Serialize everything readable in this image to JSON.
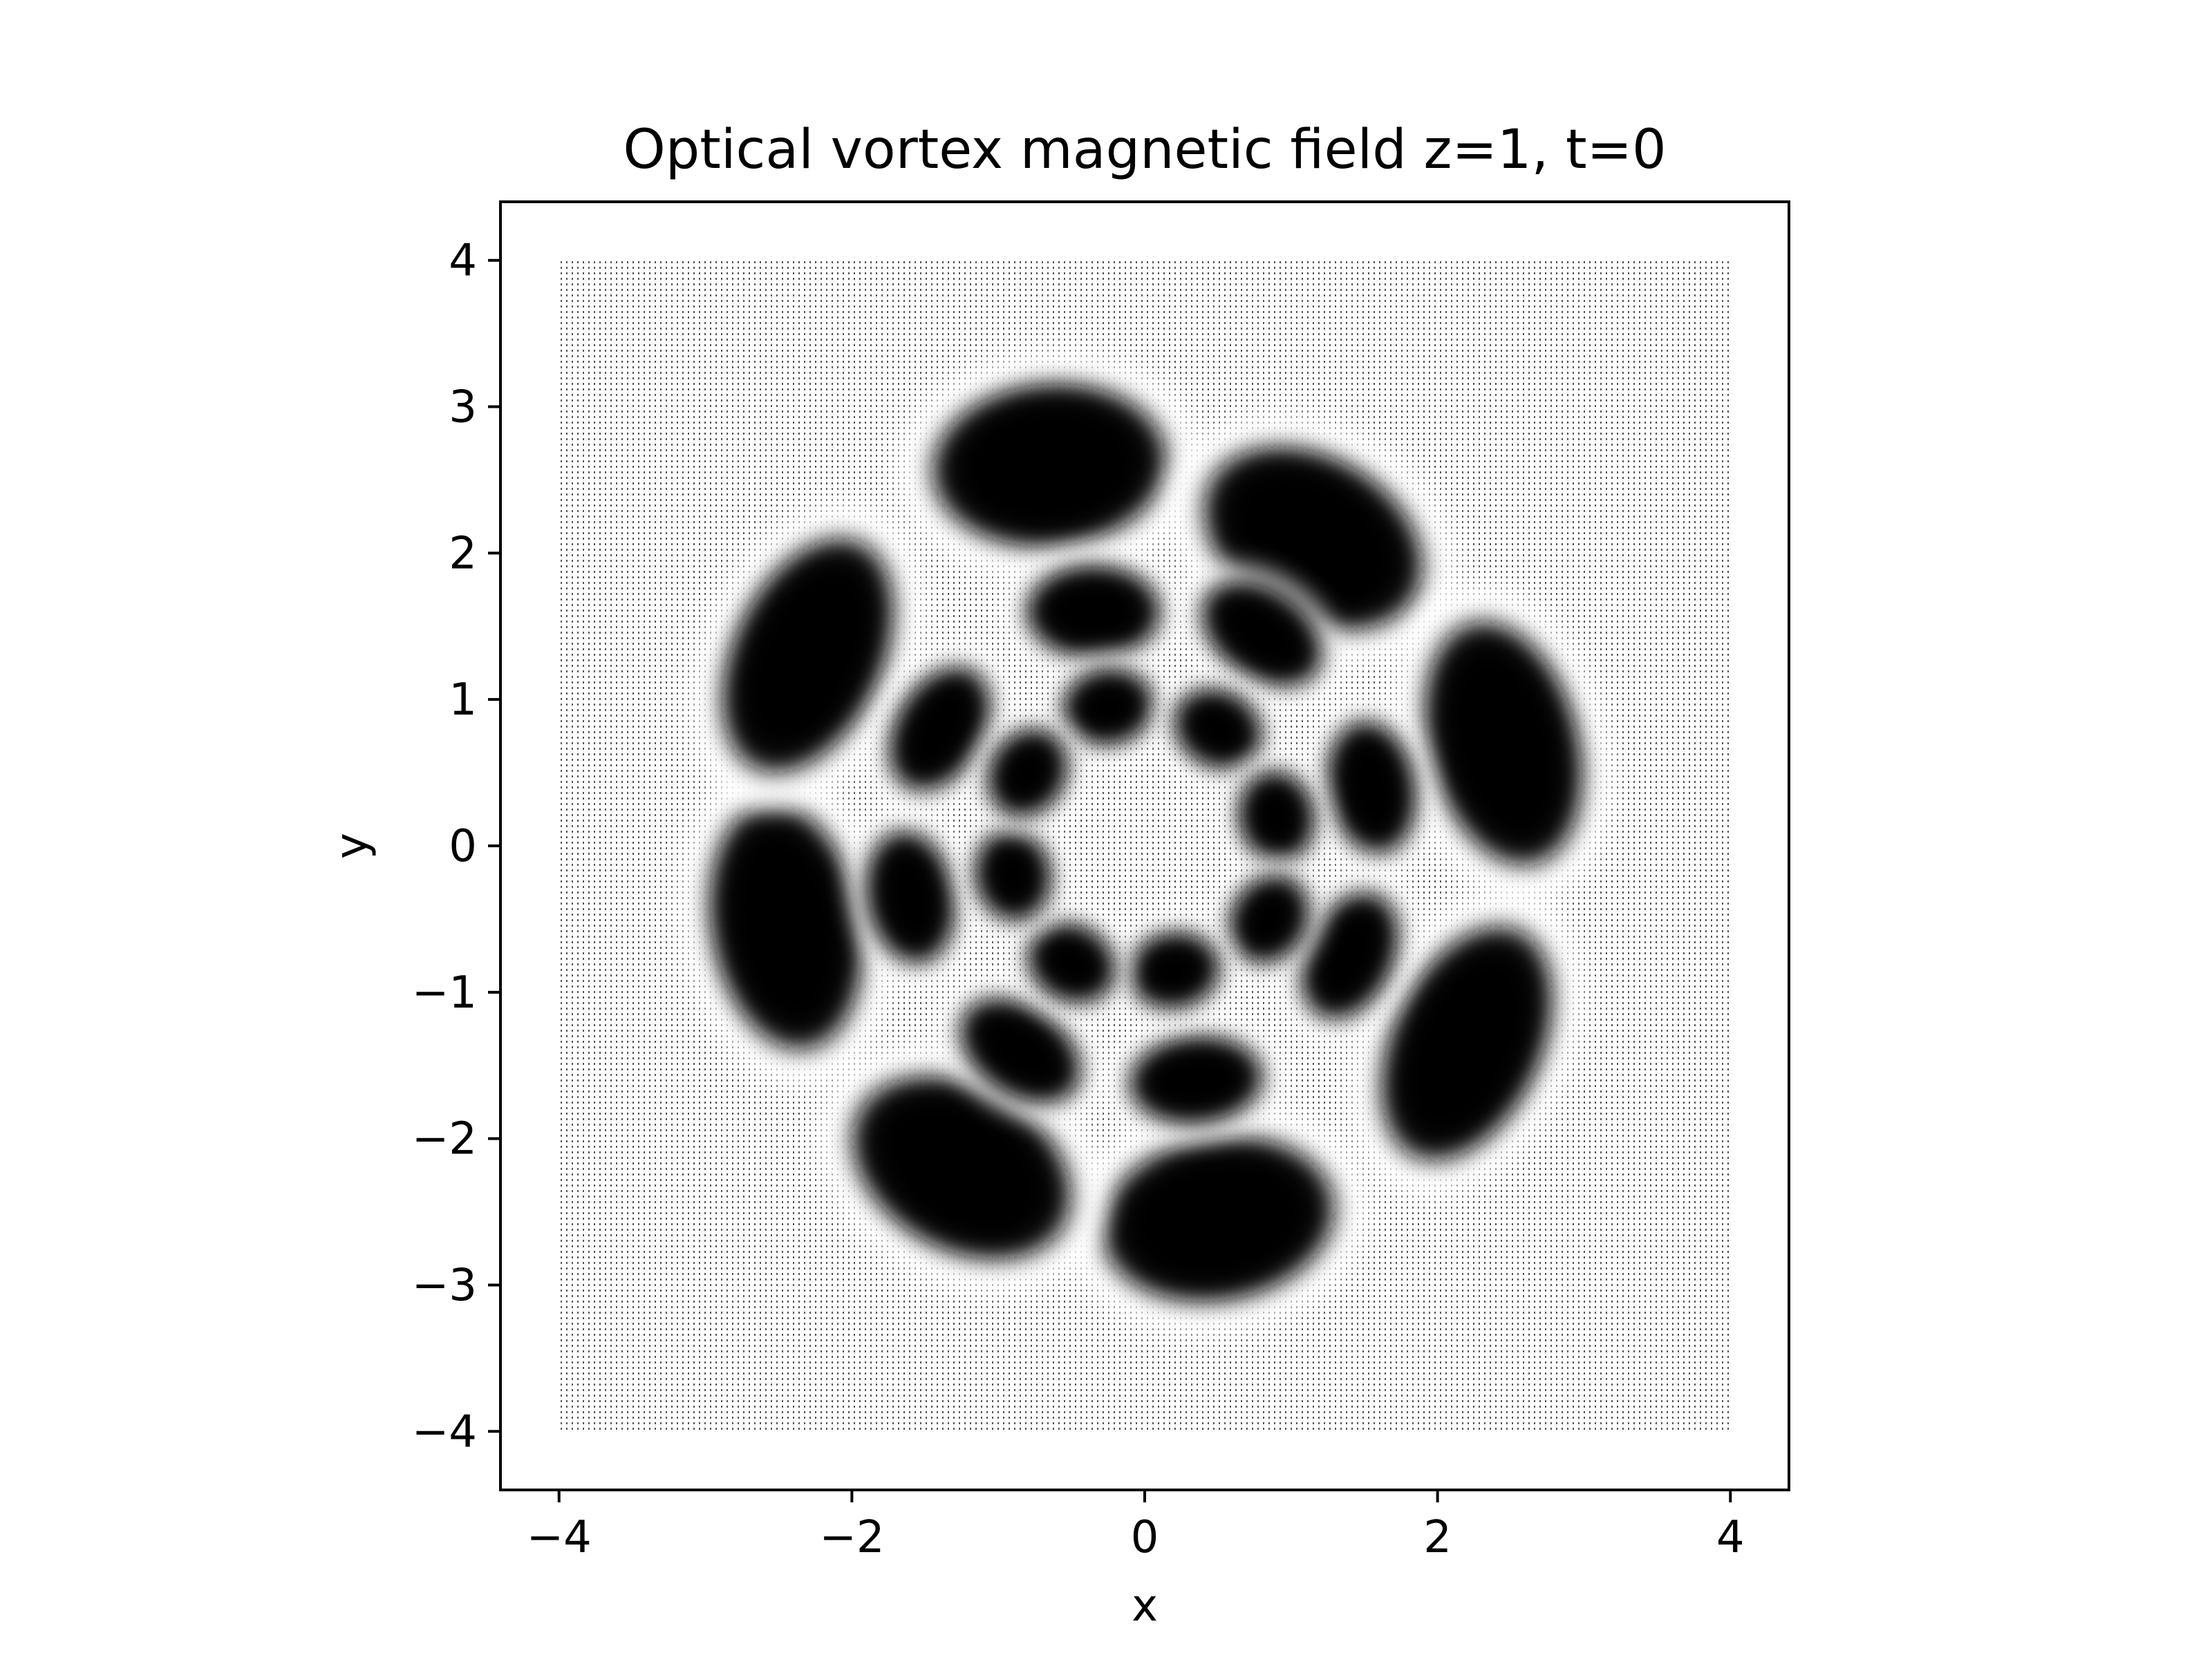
{
  "chart_data": {
    "type": "heatmap",
    "title": "Optical vortex magnetic field z=1, t=0",
    "xlabel": "x",
    "ylabel": "y",
    "xlim": [
      -4.4,
      4.4
    ],
    "ylim": [
      -4.4,
      4.4
    ],
    "grid": false,
    "legend": "none",
    "plot_style": "quiver field (dense arrows), magnitude rendered as darkness",
    "field_extent": {
      "x": [
        -4,
        4
      ],
      "y": [
        -4,
        4
      ]
    },
    "xticks": [
      -4,
      -2,
      0,
      2,
      4
    ],
    "yticks": [
      -4,
      -3,
      -2,
      -1,
      0,
      1,
      2,
      3,
      4
    ],
    "xtick_labels": [
      "−4",
      "−2",
      "0",
      "2",
      "4"
    ],
    "ytick_labels": [
      "−4",
      "−3",
      "−2",
      "−1",
      "0",
      "1",
      "2",
      "3",
      "4"
    ],
    "lobes": [
      {
        "ring": "outer",
        "x": -0.65,
        "y": 2.6,
        "rx": 0.8,
        "ry": 0.55,
        "rotation_deg": 5
      },
      {
        "ring": "outer",
        "x": 1.15,
        "y": 2.1,
        "rx": 0.8,
        "ry": 0.55,
        "rotation_deg": -30
      },
      {
        "ring": "outer",
        "x": 2.45,
        "y": 0.7,
        "rx": 0.85,
        "ry": 0.5,
        "rotation_deg": -75
      },
      {
        "ring": "outer",
        "x": 2.2,
        "y": -1.35,
        "rx": 0.85,
        "ry": 0.5,
        "rotation_deg": -115
      },
      {
        "ring": "outer",
        "x": 0.5,
        "y": -2.55,
        "rx": 0.8,
        "ry": 0.55,
        "rotation_deg": -170
      },
      {
        "ring": "outer",
        "x": -1.25,
        "y": -2.2,
        "rx": 0.8,
        "ry": 0.55,
        "rotation_deg": 150
      },
      {
        "ring": "outer",
        "x": -2.45,
        "y": -0.55,
        "rx": 0.85,
        "ry": 0.5,
        "rotation_deg": 100
      },
      {
        "ring": "outer",
        "x": -2.3,
        "y": 1.3,
        "rx": 0.85,
        "ry": 0.5,
        "rotation_deg": 65
      },
      {
        "ring": "middle",
        "x": -0.35,
        "y": 1.6,
        "rx": 0.45,
        "ry": 0.3,
        "rotation_deg": 0
      },
      {
        "ring": "middle",
        "x": 0.8,
        "y": 1.45,
        "rx": 0.45,
        "ry": 0.28,
        "rotation_deg": -35
      },
      {
        "ring": "middle",
        "x": 1.55,
        "y": 0.4,
        "rx": 0.45,
        "ry": 0.28,
        "rotation_deg": -80
      },
      {
        "ring": "middle",
        "x": 1.4,
        "y": -0.75,
        "rx": 0.45,
        "ry": 0.28,
        "rotation_deg": -115
      },
      {
        "ring": "middle",
        "x": 0.35,
        "y": -1.6,
        "rx": 0.45,
        "ry": 0.28,
        "rotation_deg": -175
      },
      {
        "ring": "middle",
        "x": -0.85,
        "y": -1.4,
        "rx": 0.45,
        "ry": 0.28,
        "rotation_deg": 145
      },
      {
        "ring": "middle",
        "x": -1.6,
        "y": -0.35,
        "rx": 0.45,
        "ry": 0.28,
        "rotation_deg": 100
      },
      {
        "ring": "middle",
        "x": -1.4,
        "y": 0.8,
        "rx": 0.45,
        "ry": 0.28,
        "rotation_deg": 60
      },
      {
        "ring": "inner",
        "x": -0.25,
        "y": 0.95,
        "rx": 0.3,
        "ry": 0.24,
        "rotation_deg": 10
      },
      {
        "ring": "inner",
        "x": 0.5,
        "y": 0.8,
        "rx": 0.3,
        "ry": 0.24,
        "rotation_deg": -30
      },
      {
        "ring": "inner",
        "x": 0.9,
        "y": 0.2,
        "rx": 0.3,
        "ry": 0.24,
        "rotation_deg": -80
      },
      {
        "ring": "inner",
        "x": 0.85,
        "y": -0.5,
        "rx": 0.3,
        "ry": 0.24,
        "rotation_deg": -120
      },
      {
        "ring": "inner",
        "x": 0.2,
        "y": -0.85,
        "rx": 0.3,
        "ry": 0.24,
        "rotation_deg": -170
      },
      {
        "ring": "inner",
        "x": -0.5,
        "y": -0.8,
        "rx": 0.3,
        "ry": 0.24,
        "rotation_deg": 150
      },
      {
        "ring": "inner",
        "x": -0.9,
        "y": -0.2,
        "rx": 0.3,
        "ry": 0.24,
        "rotation_deg": 100
      },
      {
        "ring": "inner",
        "x": -0.8,
        "y": 0.5,
        "rx": 0.3,
        "ry": 0.24,
        "rotation_deg": 60
      }
    ]
  }
}
